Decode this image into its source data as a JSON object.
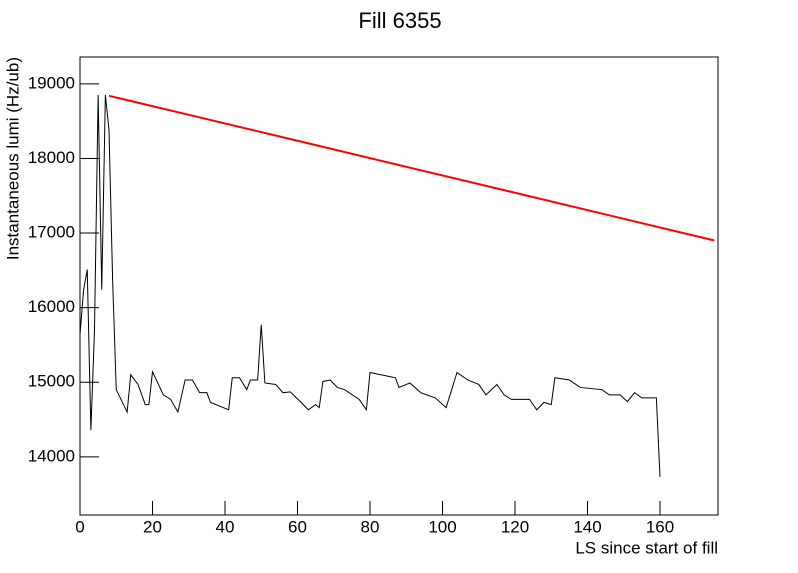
{
  "chart_data": {
    "type": "line",
    "title": "Fill 6355",
    "x_label": "LS since start of fill",
    "y_label": "Instantaneous lumi (Hz/ub)",
    "xlim": [
      0,
      176
    ],
    "ylim": [
      13220,
      19360
    ],
    "xticks": [
      0,
      20,
      40,
      60,
      80,
      100,
      120,
      140,
      160
    ],
    "yticks": [
      14000,
      15000,
      16000,
      17000,
      18000,
      19000
    ],
    "series": [
      {
        "color": "#000000",
        "x": [
          0,
          1,
          2,
          3,
          4,
          5,
          6,
          7,
          8,
          9,
          10,
          13,
          14,
          16,
          18,
          19,
          20,
          23,
          25,
          27,
          29,
          31,
          33,
          35,
          36,
          41,
          42,
          44,
          46,
          47,
          49,
          50,
          51,
          54,
          56,
          58,
          61,
          63,
          65,
          66,
          67,
          69,
          71,
          73,
          77,
          79,
          80,
          84,
          87,
          88,
          91,
          94,
          98,
          101,
          104,
          107,
          110,
          112,
          115,
          117,
          119,
          122,
          124,
          126,
          128,
          130,
          131,
          135,
          138,
          144,
          146,
          149,
          151,
          153,
          155,
          159,
          160
        ],
        "values": [
          15640,
          16240,
          16510,
          14360,
          15700,
          18850,
          16240,
          18850,
          18380,
          16370,
          14900,
          14600,
          15100,
          14970,
          14700,
          14700,
          15140,
          14830,
          14770,
          14600,
          15030,
          15030,
          14860,
          14860,
          14730,
          14630,
          15060,
          15060,
          14900,
          15030,
          15030,
          15770,
          14990,
          14970,
          14860,
          14870,
          14730,
          14630,
          14700,
          14660,
          15010,
          15030,
          14930,
          14900,
          14770,
          14630,
          15130,
          15090,
          15060,
          14930,
          14990,
          14860,
          14790,
          14660,
          15130,
          15030,
          14970,
          14830,
          14970,
          14830,
          14770,
          14770,
          14770,
          14630,
          14730,
          14700,
          15060,
          15030,
          14930,
          14900,
          14830,
          14830,
          14740,
          14860,
          14790,
          14790,
          13730
        ]
      },
      {
        "color": "#ff0000",
        "x": [
          8,
          30,
          60,
          90,
          120,
          150,
          175
        ],
        "values": [
          18840,
          18585,
          18237,
          17888,
          17540,
          17191,
          16900
        ]
      }
    ]
  }
}
